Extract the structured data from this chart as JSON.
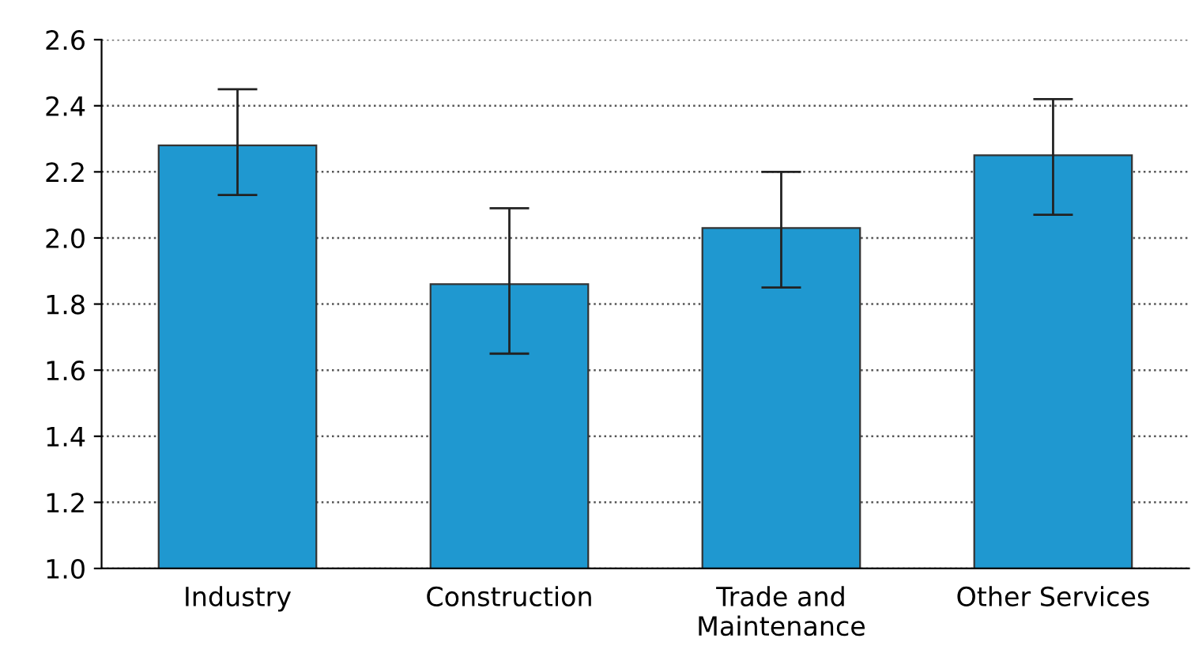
{
  "chart_data": {
    "type": "bar",
    "categories": [
      "Industry",
      "Construction",
      "Trade and\nMaintenance",
      "Other Services"
    ],
    "values": [
      2.28,
      1.86,
      2.03,
      2.25
    ],
    "errors": [
      [
        2.13,
        2.45
      ],
      [
        1.65,
        2.09
      ],
      [
        1.85,
        2.2
      ],
      [
        2.07,
        2.42
      ]
    ],
    "color": "#1f98d0",
    "ylim": [
      1.0,
      2.6
    ],
    "yticks": [
      {
        "value": 1.0,
        "label": "1.0"
      },
      {
        "value": 1.2,
        "label": "1.2"
      },
      {
        "value": 1.4,
        "label": "1.4"
      },
      {
        "value": 1.6,
        "label": "1.6"
      },
      {
        "value": 1.8,
        "label": "1.8"
      },
      {
        "value": 2.0,
        "label": "2.0"
      },
      {
        "value": 2.2,
        "label": "2.2"
      },
      {
        "value": 2.4,
        "label": "2.4"
      },
      {
        "value": 2.6,
        "label": "2.6"
      }
    ],
    "grid": "y",
    "line_style": "dotted"
  }
}
